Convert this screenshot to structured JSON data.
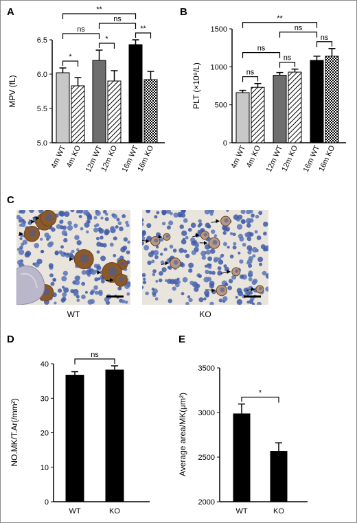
{
  "panels": {
    "A": "A",
    "B": "B",
    "C": "C",
    "D": "D",
    "E": "E"
  },
  "micrographs": {
    "left_label": "WT",
    "right_label": "KO"
  },
  "colors": {
    "wt4": "#c8c8c8",
    "wt12": "#6e6e6e",
    "wt16": "#000000",
    "ko_fill": "#ffffff",
    "stain_brown": "#8b5a2b",
    "nuclei_blue": "#3e5aa8",
    "tissue_bg": "#e9e4dc"
  },
  "chart_data": [
    {
      "panel": "A",
      "type": "bar",
      "ylabel": "MPV (fL)",
      "ylim": [
        5.0,
        6.5
      ],
      "yticks": [
        "5.0",
        "5.5",
        "6.0",
        "6.5"
      ],
      "categories": [
        "4m WT",
        "4m KO",
        "12m WT",
        "12m KO",
        "16m WT",
        "16m KO"
      ],
      "values": [
        6.02,
        5.83,
        6.2,
        5.9,
        6.43,
        5.92
      ],
      "errors": [
        0.07,
        0.12,
        0.15,
        0.15,
        0.07,
        0.12
      ],
      "comparisons": [
        {
          "a": 0,
          "b": 1,
          "label": "*"
        },
        {
          "a": 0,
          "b": 2,
          "label": "ns"
        },
        {
          "a": 2,
          "b": 3,
          "label": "*"
        },
        {
          "a": 2,
          "b": 4,
          "label": "ns"
        },
        {
          "a": 4,
          "b": 5,
          "label": "**"
        },
        {
          "a": 0,
          "b": 4,
          "label": "**"
        }
      ]
    },
    {
      "panel": "B",
      "type": "bar",
      "ylabel": "PLT (×10⁹/L)",
      "ylim": [
        0,
        1500
      ],
      "yticks": [
        "0",
        "500",
        "1000",
        "1500"
      ],
      "categories": [
        "4m WT",
        "4m KO",
        "12m WT",
        "12m KO",
        "16m WT",
        "16m KO"
      ],
      "values": [
        660,
        730,
        890,
        930,
        1085,
        1140
      ],
      "errors": [
        30,
        50,
        35,
        40,
        55,
        100
      ],
      "comparisons": [
        {
          "a": 0,
          "b": 1,
          "label": "ns"
        },
        {
          "a": 0,
          "b": 2,
          "label": "ns"
        },
        {
          "a": 2,
          "b": 3,
          "label": "ns"
        },
        {
          "a": 2,
          "b": 4,
          "label": "ns"
        },
        {
          "a": 4,
          "b": 5,
          "label": "ns"
        },
        {
          "a": 0,
          "b": 4,
          "label": "**"
        }
      ]
    },
    {
      "panel": "D",
      "type": "bar",
      "ylabel": "NO.MK/T.Ar(/mm²)",
      "ylim": [
        0,
        40
      ],
      "yticks": [
        "0",
        "10",
        "20",
        "30",
        "40"
      ],
      "categories": [
        "WT",
        "KO"
      ],
      "values": [
        36.7,
        38.2
      ],
      "errors": [
        1.0,
        1.2
      ],
      "comparisons": [
        {
          "a": 0,
          "b": 1,
          "label": "ns"
        }
      ]
    },
    {
      "panel": "E",
      "type": "bar",
      "ylabel": "Average area/MK(μm²)",
      "ylim": [
        2000,
        3500
      ],
      "yticks": [
        "2000",
        "2500",
        "3000",
        "3500"
      ],
      "categories": [
        "WT",
        "KO"
      ],
      "values": [
        2985,
        2565
      ],
      "errors": [
        110,
        95
      ],
      "comparisons": [
        {
          "a": 0,
          "b": 1,
          "label": "*"
        }
      ]
    }
  ]
}
